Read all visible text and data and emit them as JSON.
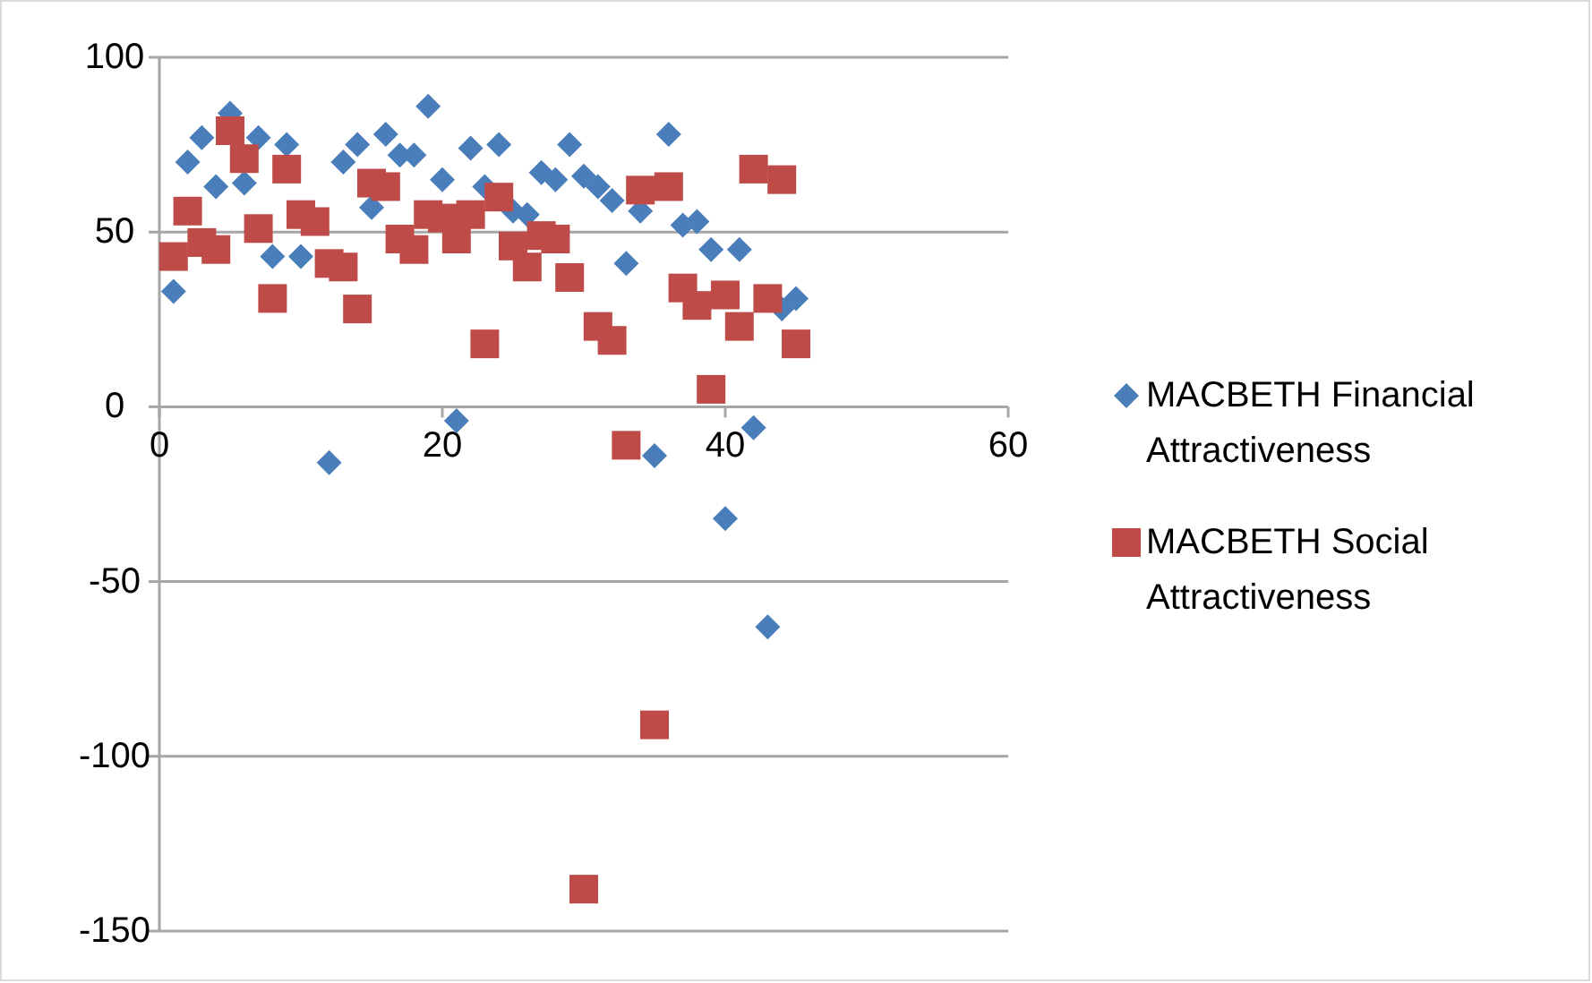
{
  "chart_data": {
    "type": "scatter",
    "x": [
      1,
      2,
      3,
      4,
      5,
      6,
      7,
      8,
      9,
      10,
      11,
      12,
      13,
      14,
      15,
      16,
      17,
      18,
      19,
      20,
      21,
      22,
      23,
      24,
      25,
      26,
      27,
      28,
      29,
      30,
      31,
      32,
      33,
      34,
      35,
      36,
      37,
      38,
      39,
      40,
      41,
      42,
      43,
      44,
      45
    ],
    "series": [
      {
        "name": "MACBETH Financial Attractiveness",
        "color": "#4a7ebb",
        "marker": "diamond",
        "values": [
          33,
          70,
          77,
          63,
          84,
          64,
          77,
          43,
          75,
          43,
          null,
          -16,
          70,
          75,
          57,
          78,
          72,
          72,
          86,
          65,
          -4,
          74,
          63,
          75,
          56,
          55,
          67,
          65,
          75,
          66,
          63,
          59,
          41,
          56,
          -14,
          78,
          52,
          53,
          45,
          -32,
          45,
          -6,
          -63,
          28,
          31
        ]
      },
      {
        "name": "MACBETH Social Attractiveness",
        "color": "#be4b48",
        "marker": "square",
        "values": [
          43,
          56,
          47,
          45,
          79,
          71,
          51,
          31,
          68,
          55,
          53,
          41,
          40,
          28,
          64,
          63,
          48,
          45,
          55,
          54,
          48,
          55,
          18,
          60,
          46,
          40,
          49,
          48,
          37,
          -138,
          23,
          19,
          -11,
          62,
          -91,
          63,
          34,
          29,
          5,
          32,
          23,
          68,
          31,
          65,
          18
        ]
      }
    ],
    "xlim": [
      0,
      60
    ],
    "xticks": [
      0,
      20,
      40,
      60
    ],
    "ylim": [
      -150,
      100
    ],
    "yticks": [
      -150,
      -100,
      -50,
      0,
      50,
      100
    ],
    "grid": "y",
    "legend": "right"
  }
}
